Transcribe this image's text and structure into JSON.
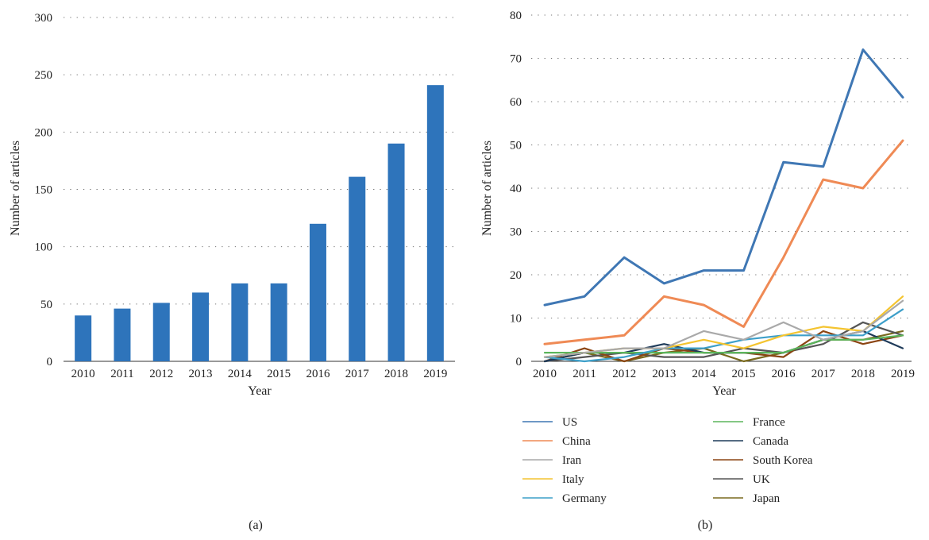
{
  "chart_data": [
    {
      "type": "bar",
      "panel_label": "(a)",
      "categories": [
        "2010",
        "2011",
        "2012",
        "2013",
        "2014",
        "2015",
        "2016",
        "2017",
        "2018",
        "2019"
      ],
      "values": [
        40,
        46,
        51,
        60,
        68,
        68,
        120,
        161,
        190,
        241
      ],
      "xlabel": "Year",
      "ylabel": "Number of articles",
      "ylim": [
        0,
        300
      ],
      "yticks": [
        0,
        50,
        100,
        150,
        200,
        250,
        300
      ],
      "grid": "horizontal dotted",
      "bar_color": "#2e74bb"
    },
    {
      "type": "line",
      "panel_label": "(b)",
      "x": [
        "2010",
        "2011",
        "2012",
        "2013",
        "2014",
        "2015",
        "2016",
        "2017",
        "2018",
        "2019"
      ],
      "xlabel": "Year",
      "ylabel": "Number of articles",
      "ylim": [
        0,
        80
      ],
      "yticks": [
        0,
        10,
        20,
        30,
        40,
        50,
        60,
        70,
        80
      ],
      "grid": "horizontal dotted",
      "legend_position": "bottom",
      "series": [
        {
          "name": "US",
          "color": "#3f77b4",
          "values": [
            13,
            15,
            24,
            18,
            21,
            21,
            46,
            45,
            72,
            61
          ]
        },
        {
          "name": "China",
          "color": "#ef8a55",
          "values": [
            4,
            5,
            6,
            15,
            13,
            8,
            24,
            42,
            40,
            51
          ]
        },
        {
          "name": "Iran",
          "color": "#a9a9a9",
          "values": [
            1,
            2,
            3,
            3,
            7,
            5,
            9,
            5,
            7,
            14
          ]
        },
        {
          "name": "Italy",
          "color": "#f4c430",
          "values": [
            1,
            2,
            3,
            3,
            5,
            3,
            6,
            8,
            7,
            15
          ]
        },
        {
          "name": "Germany",
          "color": "#3d9fc9",
          "values": [
            1,
            0,
            1,
            3,
            3,
            5,
            6,
            6,
            6,
            12
          ]
        },
        {
          "name": "France",
          "color": "#5bb55b",
          "values": [
            2,
            2,
            2,
            2,
            2,
            2,
            2,
            5,
            5,
            6
          ]
        },
        {
          "name": "Canada",
          "color": "#1f3b5a",
          "values": [
            0,
            2,
            2,
            4,
            2,
            2,
            2,
            5,
            7,
            3
          ]
        },
        {
          "name": "South Korea",
          "color": "#8b4513",
          "values": [
            0,
            3,
            0,
            3,
            2,
            2,
            1,
            7,
            4,
            6
          ]
        },
        {
          "name": "UK",
          "color": "#555555",
          "values": [
            0,
            1,
            2,
            1,
            1,
            3,
            2,
            4,
            9,
            6
          ]
        },
        {
          "name": "Japan",
          "color": "#7a6a1e",
          "values": [
            0,
            2,
            0,
            2,
            3,
            0,
            2,
            5,
            5,
            7
          ]
        }
      ]
    }
  ]
}
